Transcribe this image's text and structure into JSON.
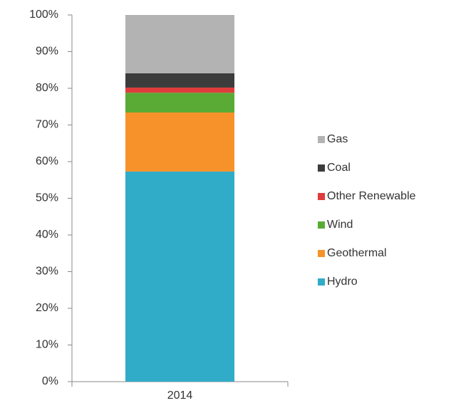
{
  "chart_data": {
    "type": "stacked_bar",
    "categories": [
      "2014"
    ],
    "series": [
      {
        "name": "Hydro",
        "color": "#30acc8",
        "values": [
          57.3
        ]
      },
      {
        "name": "Geothermal",
        "color": "#f7922a",
        "values": [
          16.1
        ]
      },
      {
        "name": "Wind",
        "color": "#5aab35",
        "values": [
          5.4
        ]
      },
      {
        "name": "Other Renewable",
        "color": "#e03c3c",
        "values": [
          1.4
        ]
      },
      {
        "name": "Coal",
        "color": "#3c3c3c",
        "values": [
          3.9
        ]
      },
      {
        "name": "Gas",
        "color": "#b3b3b3",
        "values": [
          15.9
        ]
      }
    ],
    "ylim": [
      0,
      100
    ],
    "yticks": [
      {
        "value": 0,
        "label": "0%"
      },
      {
        "value": 10,
        "label": "10%"
      },
      {
        "value": 20,
        "label": "20%"
      },
      {
        "value": 30,
        "label": "30%"
      },
      {
        "value": 40,
        "label": "40%"
      },
      {
        "value": 50,
        "label": "50%"
      },
      {
        "value": 60,
        "label": "60%"
      },
      {
        "value": 70,
        "label": "70%"
      },
      {
        "value": 80,
        "label": "80%"
      },
      {
        "value": 90,
        "label": "90%"
      },
      {
        "value": 100,
        "label": "100%"
      }
    ],
    "legend": "right"
  }
}
